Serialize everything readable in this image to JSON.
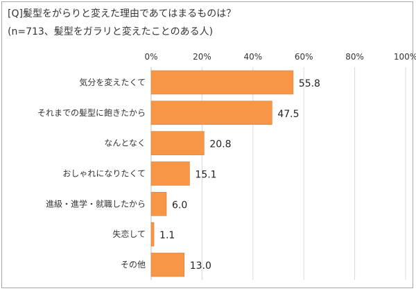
{
  "chart_data": {
    "type": "bar",
    "orientation": "horizontal",
    "title": "[Q]髪型をがらりと変えた理由であてはまるものは？",
    "subtitle": "(n=713、髪型をガラリと変えたことのある人)",
    "categories": [
      "気分を変えたくて",
      "それまでの髪型に飽きたから",
      "なんとなく",
      "おしゃれになりたくて",
      "進級・進学・就職したから",
      "失恋して",
      "その他"
    ],
    "values": [
      55.8,
      47.5,
      20.8,
      15.1,
      6.0,
      1.1,
      13.0
    ],
    "value_labels": [
      "55.8",
      "47.5",
      "20.8",
      "15.1",
      "6.0",
      "1.1",
      "13.0"
    ],
    "xlim": [
      0,
      100
    ],
    "x_ticks": [
      0,
      20,
      40,
      60,
      80,
      100
    ],
    "x_tick_labels": [
      "0%",
      "20%",
      "40%",
      "60%",
      "80%",
      "100%"
    ],
    "x_axis_position": "top",
    "grid": true,
    "bar_color": "#f79646",
    "bar_edge_color": "#e07b2a",
    "grid_color": "#d9d9d9"
  }
}
